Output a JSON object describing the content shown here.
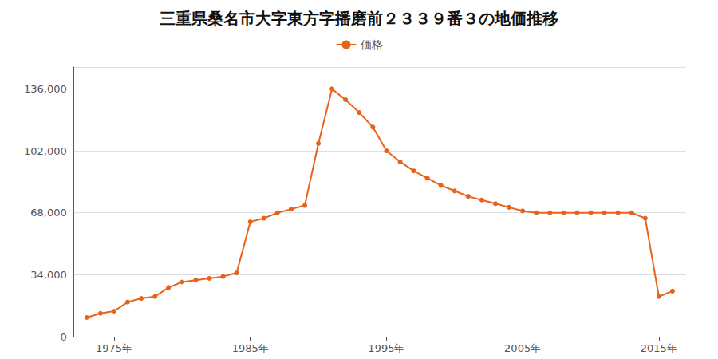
{
  "chart_data": {
    "type": "line",
    "title": "三重県桑名市大字東方字播磨前２３３９番３の地価推移",
    "x": [
      1973,
      1974,
      1975,
      1976,
      1977,
      1978,
      1979,
      1980,
      1981,
      1982,
      1983,
      1984,
      1985,
      1986,
      1987,
      1988,
      1989,
      1990,
      1991,
      1992,
      1993,
      1994,
      1995,
      1996,
      1997,
      1998,
      1999,
      2000,
      2001,
      2002,
      2003,
      2004,
      2005,
      2006,
      2007,
      2008,
      2009,
      2010,
      2011,
      2012,
      2013,
      2014,
      2015,
      2016
    ],
    "series": [
      {
        "name": "価格",
        "color": "#e8621a",
        "values": [
          10500,
          12800,
          14000,
          19000,
          21000,
          22000,
          27000,
          30000,
          31000,
          32000,
          33000,
          35000,
          63000,
          65000,
          68000,
          70000,
          72000,
          106000,
          136000,
          130000,
          123000,
          115000,
          102000,
          96000,
          91000,
          87000,
          83000,
          80000,
          77000,
          75000,
          73000,
          71000,
          69000,
          68000,
          68000,
          68000,
          68000,
          68000,
          68000,
          68000,
          68000,
          65000,
          22000,
          25000
        ]
      }
    ],
    "xlim": [
      1972,
      2017
    ],
    "xticks": [
      {
        "value": 1975,
        "label": "1975年"
      },
      {
        "value": 1985,
        "label": "1985年"
      },
      {
        "value": 1995,
        "label": "1995年"
      },
      {
        "value": 2005,
        "label": "2005年"
      },
      {
        "value": 2015,
        "label": "2015年"
      }
    ],
    "ylim": [
      0,
      148000
    ],
    "yticks": [
      0,
      {
        "value": 34000,
        "label": "34,000"
      },
      {
        "value": 68000,
        "label": "68,000"
      },
      {
        "value": 102000,
        "label": "102,000"
      },
      {
        "value": 136000,
        "label": "136,000"
      }
    ],
    "grid": true,
    "legend": "top",
    "marker": "circle"
  }
}
